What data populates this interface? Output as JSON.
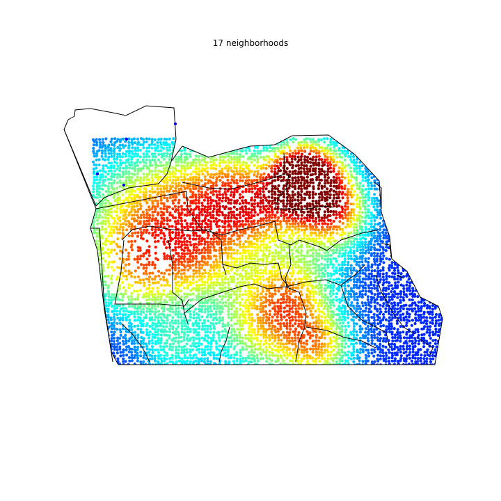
{
  "title": "17 neighborhoods",
  "map": {
    "colormap": "jet",
    "neighborhood_count": 17,
    "outline_color": "#000000",
    "density_hotspots": [
      {
        "label": "highest",
        "color": "#8b0000"
      },
      {
        "label": "medium-high",
        "color": "#ffff00"
      },
      {
        "label": "medium",
        "color": "#80ff80"
      },
      {
        "label": "low",
        "color": "#0000cd"
      }
    ]
  }
}
